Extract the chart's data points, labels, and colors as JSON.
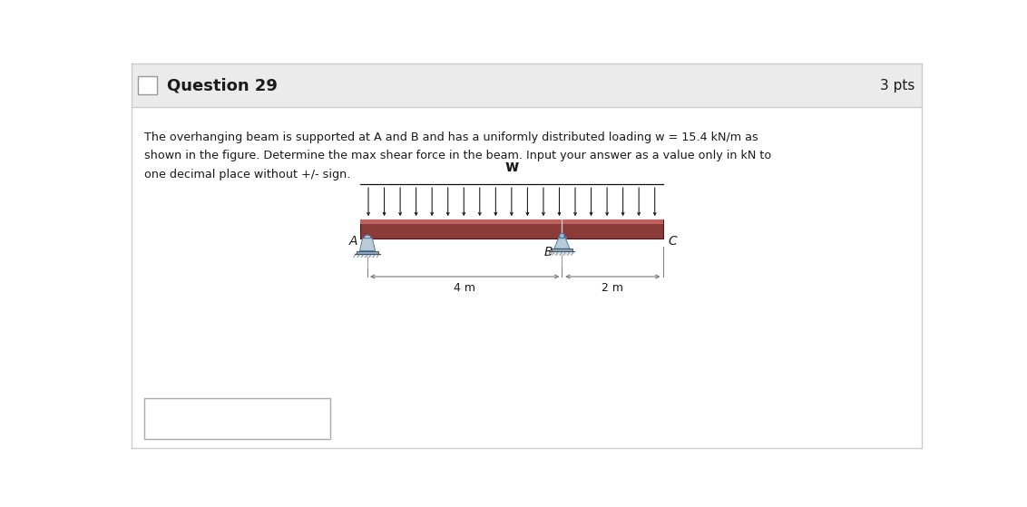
{
  "title": "Question 29",
  "pts": "3 pts",
  "problem_text_line1": "The overhanging beam is supported at A and B and has a uniformly distributed loading w = 15.4 kN/m as",
  "problem_text_line2": "shown in the figure. Determine the max shear force in the beam. Input your answer as a value only in kN to",
  "problem_text_line3": "one decimal place without +/- sign.",
  "w_label": "w",
  "A_label": "A",
  "B_label": "B",
  "C_label": "C",
  "dim1_label": "4 m",
  "dim2_label": "2 m",
  "header_bg": "#ebebeb",
  "beam_color": "#8B3A3A",
  "beam_top_color": "#C06060",
  "beam_border": "#4a1a1a",
  "arrow_color": "#111111",
  "support_body_color": "#b8ccd8",
  "support_base_color": "#8aaabb",
  "support_shadow": "#d0dde5",
  "dim_line_color": "#777777",
  "text_color": "#1a1a1a",
  "panel_bg": "#ffffff",
  "divider_color": "#cccccc"
}
